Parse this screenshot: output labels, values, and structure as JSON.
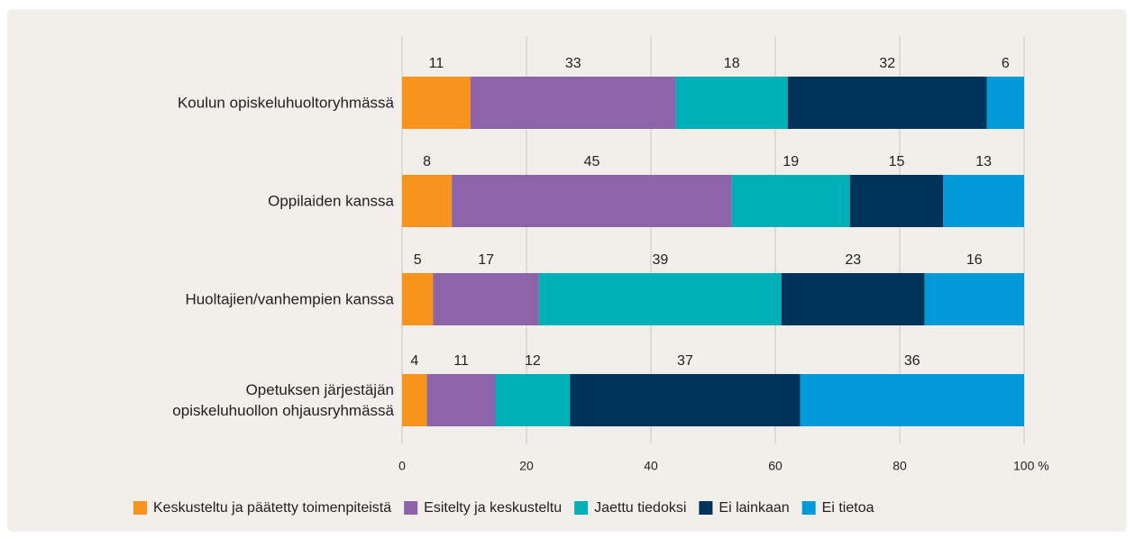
{
  "chart_data": {
    "type": "stacked-barh",
    "categories": [
      "Koulun opiskeluhuoltoryhmässä",
      "Oppilaiden kanssa",
      "Huoltajien/vanhempien kanssa",
      "Opetuksen järjestäjän\nopiskeluhuollon ohjausryhmässä"
    ],
    "series": [
      {
        "name": "Keskusteltu ja päätetty toimenpiteistä",
        "color": "#f7941d",
        "values": [
          11,
          8,
          5,
          4
        ]
      },
      {
        "name": "Esitelty ja keskusteltu",
        "color": "#8d64aa",
        "values": [
          33,
          45,
          17,
          11
        ]
      },
      {
        "name": "Jaettu tiedoksi",
        "color": "#00b0b9",
        "values": [
          18,
          19,
          39,
          12
        ]
      },
      {
        "name": "Ei lainkaan",
        "color": "#003359",
        "values": [
          32,
          15,
          23,
          37
        ]
      },
      {
        "name": "Ei tietoa",
        "color": "#009ad9",
        "values": [
          6,
          13,
          16,
          36
        ]
      }
    ],
    "xlim": [
      0,
      100
    ],
    "xticks": [
      0,
      20,
      40,
      60,
      80,
      {
        "value": 100,
        "label": "100 %"
      }
    ],
    "grid": true
  }
}
